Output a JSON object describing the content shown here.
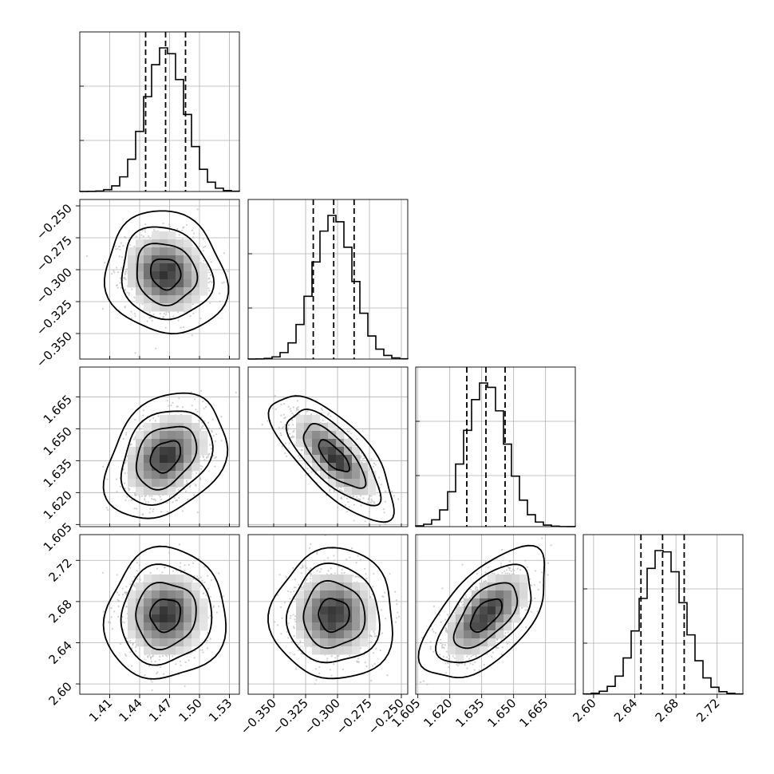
{
  "chart_data": {
    "type": "corner",
    "grid": true,
    "parameters": [
      {
        "index": 0,
        "center": 1.466,
        "sigma": 0.0195,
        "quantiles": [
          1.446,
          1.466,
          1.486
        ],
        "lim": [
          1.38,
          1.54
        ],
        "ticks": [
          1.41,
          1.44,
          1.47,
          1.5,
          1.53
        ],
        "tick_labels": [
          "1.41",
          "1.44",
          "1.47",
          "1.50",
          "1.53"
        ]
      },
      {
        "index": 1,
        "center": -0.303,
        "sigma": 0.0155,
        "quantiles": [
          -0.319,
          -0.303,
          -0.287
        ],
        "lim": [
          -0.37,
          -0.245
        ],
        "ticks": [
          -0.35,
          -0.325,
          -0.3,
          -0.275,
          -0.25
        ],
        "tick_labels": [
          "−0.350",
          "−0.325",
          "−0.300",
          "−0.275",
          "−0.250"
        ]
      },
      {
        "index": 2,
        "center": 1.637,
        "sigma": 0.0095,
        "quantiles": [
          1.628,
          1.637,
          1.646
        ],
        "lim": [
          1.604,
          1.679
        ],
        "ticks": [
          1.605,
          1.62,
          1.635,
          1.65,
          1.665
        ],
        "tick_labels": [
          "1.605",
          "1.620",
          "1.635",
          "1.650",
          "1.665"
        ]
      },
      {
        "index": 3,
        "center": 2.667,
        "sigma": 0.0205,
        "quantiles": [
          2.646,
          2.667,
          2.688
        ],
        "lim": [
          2.59,
          2.745
        ],
        "ticks": [
          2.6,
          2.64,
          2.68,
          2.72
        ],
        "tick_labels": [
          "2.60",
          "2.64",
          "2.68",
          "2.72"
        ]
      }
    ],
    "correlations": [
      {
        "x": 0,
        "y": 1,
        "rho": -0.1
      },
      {
        "x": 0,
        "y": 2,
        "rho": 0.3
      },
      {
        "x": 1,
        "y": 2,
        "rho": -0.72
      },
      {
        "x": 0,
        "y": 3,
        "rho": 0.05
      },
      {
        "x": 1,
        "y": 3,
        "rho": 0.0
      },
      {
        "x": 2,
        "y": 3,
        "rho": 0.6
      }
    ],
    "histogram_bins": 20,
    "contour_levels_sigma": [
      0.5,
      1.0,
      1.5,
      2.0
    ],
    "colors": {
      "hist": "#000000",
      "density": "#000000",
      "scatter": "#bdbdbd",
      "grid": "#b0b0b0"
    },
    "title": "",
    "xlabel": "",
    "ylabel": ""
  }
}
